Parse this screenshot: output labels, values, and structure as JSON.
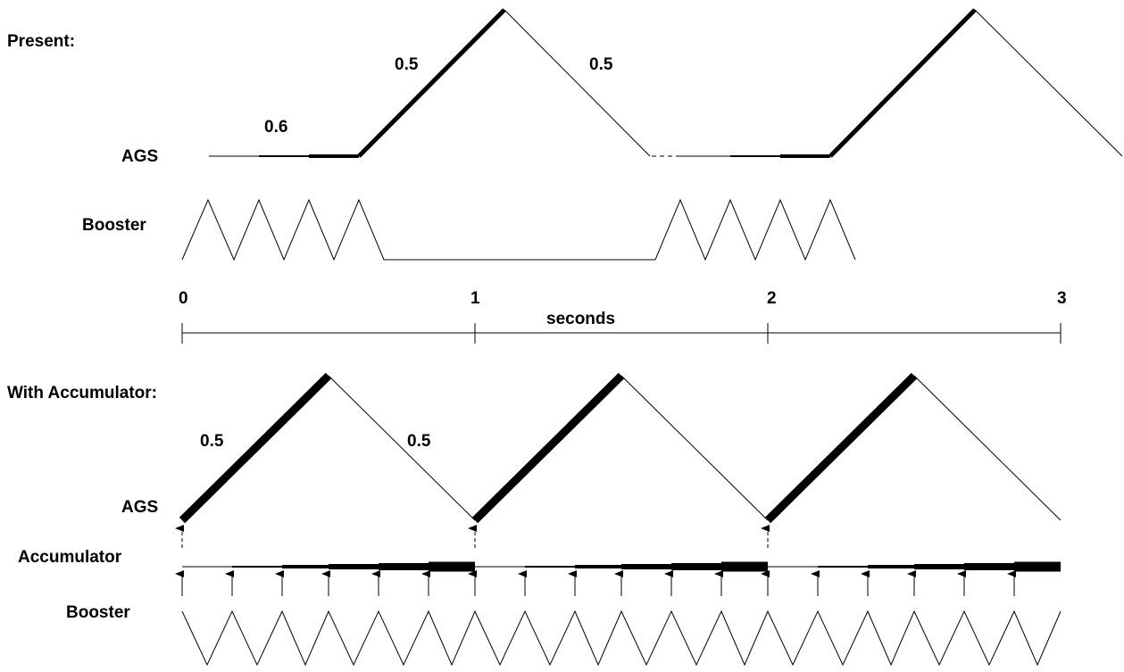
{
  "present": {
    "title": "Present:",
    "ags_label": "AGS",
    "booster_label": "Booster",
    "rise_value": "0.5",
    "fall_value": "0.5",
    "flat_value": "0.6"
  },
  "axis": {
    "ticks": [
      "0",
      "1",
      "2",
      "3"
    ],
    "unit": "seconds"
  },
  "accumulator_section": {
    "title": "With Accumulator:",
    "ags_label": "AGS",
    "accumulator_label": "Accumulator",
    "booster_label": "Booster",
    "rise_value": "0.5",
    "fall_value": "0.5"
  },
  "colors": {
    "ink": "#000000",
    "background": "#ffffff"
  }
}
